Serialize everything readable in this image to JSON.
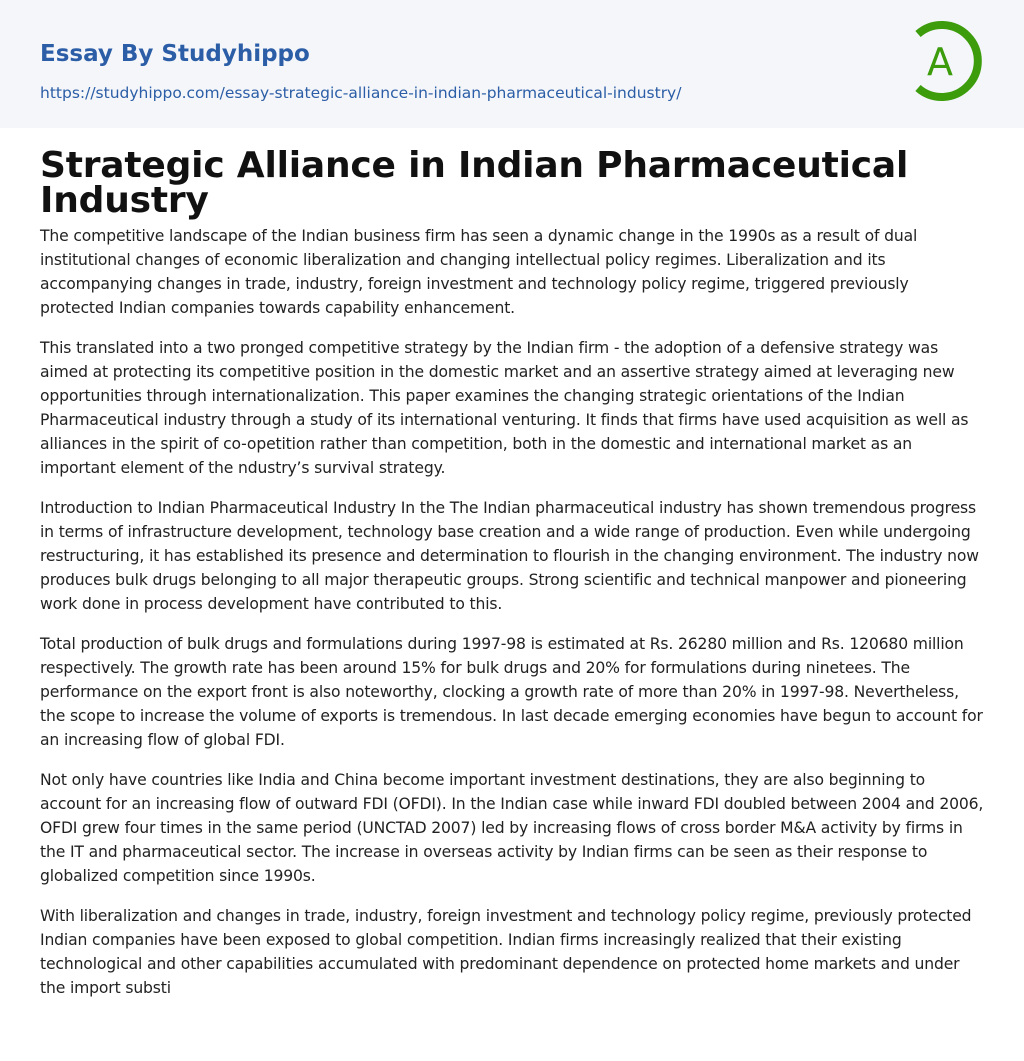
{
  "header": {
    "site_title": "Essay By Studyhippo",
    "url": "https://studyhippo.com/essay-strategic-alliance-in-indian-pharmaceutical-industry/",
    "logo_letter": "A",
    "brand_blue": "#2b5ea6",
    "logo_green": "#3c9c0c"
  },
  "article": {
    "title": "Strategic Alliance in Indian Pharmaceutical Industry",
    "paragraphs": [
      "The competitive landscape of the Indian business firm has seen a dynamic change in the 1990s as a result of dual institutional changes of economic liberalization and changing intellectual policy regimes. Liberalization and its accompanying changes in trade, industry, foreign investment and technology policy regime, triggered previously protected Indian companies towards capability enhancement.",
      "This translated into a two pronged competitive strategy by the Indian firm - the adoption of a defensive strategy was aimed at protecting its competitive position in the domestic market and an assertive strategy aimed at leveraging new opportunities through internationalization. This paper examines the changing strategic orientations of the Indian Pharmaceutical industry through a study of its international venturing. It finds that firms have used acquisition as well as alliances in the spirit of co-opetition rather than competition, both in the domestic and international market as an important element of the ndustry’s survival strategy.",
      "Introduction to Indian Pharmaceutical Industry In the The Indian pharmaceutical industry has shown tremendous progress in terms of infrastructure development, technology base creation and a wide range of production. Even while undergoing restructuring, it has established its presence and determination to flourish in the changing environment. The industry now produces bulk drugs belonging to all major therapeutic groups. Strong scientific and technical manpower and pioneering work done in process development have contributed to this.",
      "Total production of bulk drugs and formulations during 1997-98 is estimated at Rs. 26280 million and Rs. 120680 million respectively. The growth rate has been around 15% for bulk drugs and 20% for formulations during ninetees. The performance on the export front is also noteworthy, clocking a growth rate of more than 20% in 1997-98. Nevertheless, the scope to increase the volume of exports is tremendous. In last decade emerging economies have begun to account for an increasing flow of global FDI.",
      "Not only have countries like India and China become important investment destinations, they are also beginning to account for an increasing flow of outward FDI (OFDI). In the Indian case while inward FDI doubled between 2004 and 2006, OFDI grew four times in the same period (UNCTAD 2007) led by increasing flows of cross border M&A activity by firms in the IT and pharmaceutical sector. The increase in overseas activity by Indian firms can be seen as their response to globalized competition since 1990s.",
      "With liberalization and changes in trade, industry, foreign investment and technology policy regime, previously protected Indian companies have been exposed to global competition. Indian firms increasingly realized that their existing technological and other capabilities accumulated with predominant dependence on protected home markets and under the import substi"
    ]
  }
}
